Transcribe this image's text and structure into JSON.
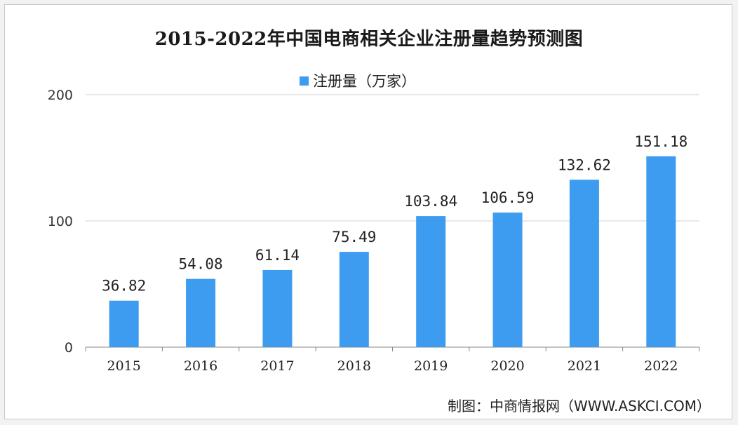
{
  "chart_data": {
    "type": "bar",
    "title": "2015-2022年中国电商相关企业注册量趋势预测图",
    "series": [
      {
        "name": "注册量（万家）",
        "values": [
          36.82,
          54.08,
          61.14,
          75.49,
          103.84,
          106.59,
          132.62,
          151.18
        ],
        "value_labels": [
          "36.82",
          "54.08",
          "61.14",
          "75.49",
          "103.84",
          "106.59",
          "132.62",
          "151.18"
        ]
      }
    ],
    "categories": [
      "2015",
      "2016",
      "2017",
      "2018",
      "2019",
      "2020",
      "2021",
      "2022"
    ],
    "ylim": [
      0,
      200
    ],
    "yticks": [
      "0",
      "100",
      "200"
    ],
    "grid": true,
    "legend_position": "top-center",
    "bar_color": "#3d9cf0"
  },
  "source_note": "制图：中商情报网（WWW.ASKCI.COM）"
}
